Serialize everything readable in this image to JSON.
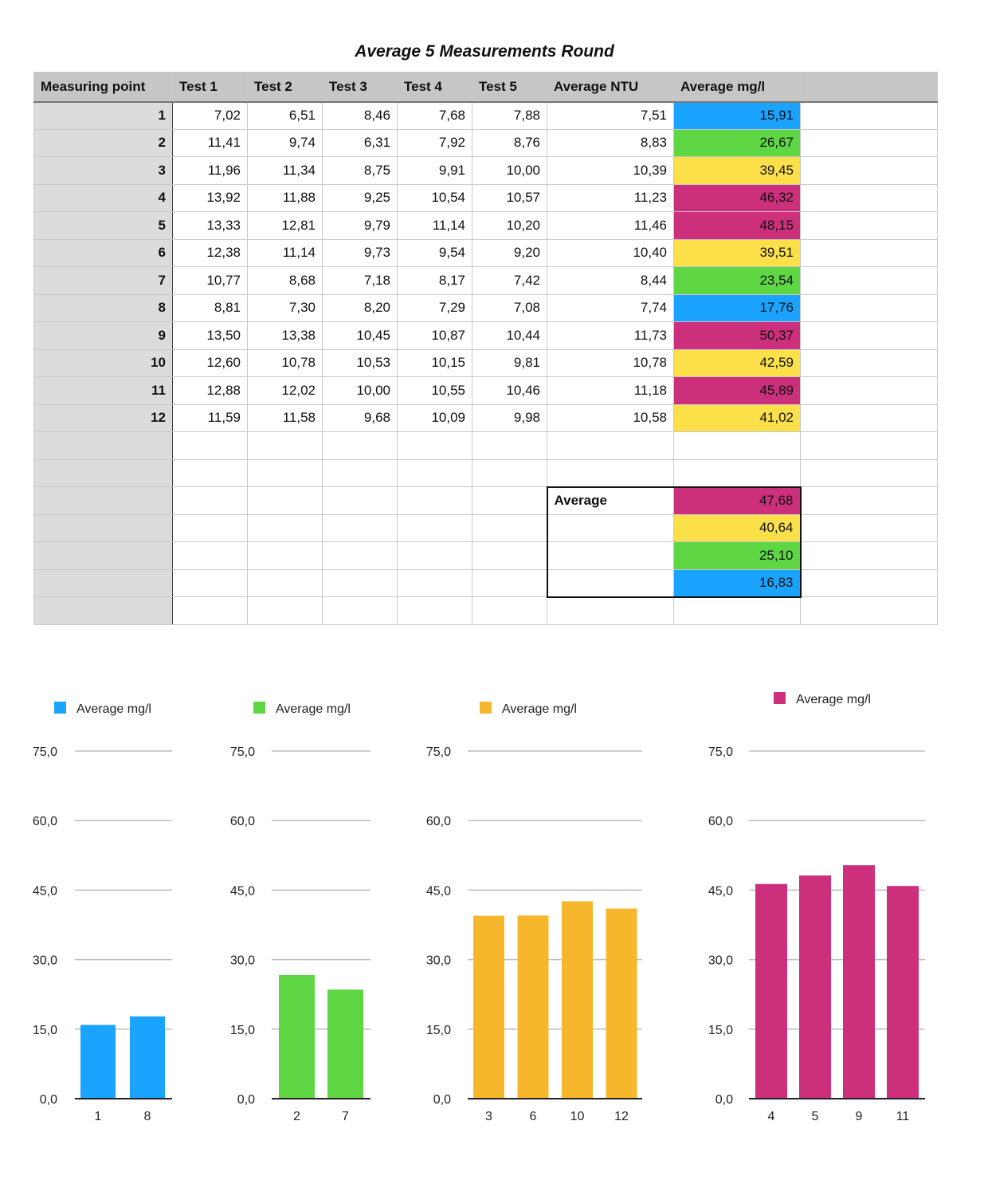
{
  "title": "Average 5 Measurements Round",
  "table": {
    "headers": [
      "Measuring point",
      "Test 1",
      "Test 2",
      "Test 3",
      "Test 4",
      "Test 5",
      "Average NTU",
      "Average mg/l",
      ""
    ],
    "rows": [
      {
        "point": "1",
        "values": [
          "7,02",
          "6,51",
          "8,46",
          "7,68",
          "7,88",
          "7,51"
        ],
        "mgl": "15,91",
        "color": "#1aa3ff"
      },
      {
        "point": "2",
        "values": [
          "11,41",
          "9,74",
          "6,31",
          "7,92",
          "8,76",
          "8,83"
        ],
        "mgl": "26,67",
        "color": "#5fd644"
      },
      {
        "point": "3",
        "values": [
          "11,96",
          "11,34",
          "8,75",
          "9,91",
          "10,00",
          "10,39"
        ],
        "mgl": "39,45",
        "color": "#fbe04a"
      },
      {
        "point": "4",
        "values": [
          "13,92",
          "11,88",
          "9,25",
          "10,54",
          "10,57",
          "11,23"
        ],
        "mgl": "46,32",
        "color": "#cc2f7c"
      },
      {
        "point": "5",
        "values": [
          "13,33",
          "12,81",
          "9,79",
          "11,14",
          "10,20",
          "11,46"
        ],
        "mgl": "48,15",
        "color": "#cc2f7c"
      },
      {
        "point": "6",
        "values": [
          "12,38",
          "11,14",
          "9,73",
          "9,54",
          "9,20",
          "10,40"
        ],
        "mgl": "39,51",
        "color": "#fbe04a"
      },
      {
        "point": "7",
        "values": [
          "10,77",
          "8,68",
          "7,18",
          "8,17",
          "7,42",
          "8,44"
        ],
        "mgl": "23,54",
        "color": "#5fd644"
      },
      {
        "point": "8",
        "values": [
          "8,81",
          "7,30",
          "8,20",
          "7,29",
          "7,08",
          "7,74"
        ],
        "mgl": "17,76",
        "color": "#1aa3ff"
      },
      {
        "point": "9",
        "values": [
          "13,50",
          "13,38",
          "10,45",
          "10,87",
          "10,44",
          "11,73"
        ],
        "mgl": "50,37",
        "color": "#cc2f7c"
      },
      {
        "point": "10",
        "values": [
          "12,60",
          "10,78",
          "10,53",
          "10,15",
          "9,81",
          "10,78"
        ],
        "mgl": "42,59",
        "color": "#fbe04a"
      },
      {
        "point": "11",
        "values": [
          "12,88",
          "12,02",
          "10,00",
          "10,55",
          "10,46",
          "11,18"
        ],
        "mgl": "45,89",
        "color": "#cc2f7c"
      },
      {
        "point": "12",
        "values": [
          "11,59",
          "11,58",
          "9,68",
          "10,09",
          "9,98",
          "10,58"
        ],
        "mgl": "41,02",
        "color": "#fbe04a"
      }
    ],
    "average_label": "Average",
    "averages": [
      {
        "value": "47,68",
        "color": "#cc2f7c"
      },
      {
        "value": "40,64",
        "color": "#fbe04a"
      },
      {
        "value": "25,10",
        "color": "#5fd644"
      },
      {
        "value": "16,83",
        "color": "#1aa3ff"
      }
    ]
  },
  "chart_data": [
    {
      "type": "bar",
      "categories": [
        "1",
        "8"
      ],
      "series": [
        {
          "name": "Average mg/l",
          "values": [
            15.91,
            17.76
          ]
        }
      ],
      "color": "#1aa3ff",
      "ylim": [
        0,
        75
      ],
      "yticks": [
        "0,0",
        "15,0",
        "30,0",
        "45,0",
        "60,0",
        "75,0"
      ],
      "grid": true,
      "legend": "top-left"
    },
    {
      "type": "bar",
      "categories": [
        "2",
        "7"
      ],
      "series": [
        {
          "name": "Average mg/l",
          "values": [
            26.67,
            23.54
          ]
        }
      ],
      "color": "#5fd644",
      "ylim": [
        0,
        75
      ],
      "yticks": [
        "0,0",
        "15,0",
        "30,0",
        "45,0",
        "60,0",
        "75,0"
      ],
      "grid": true,
      "legend": "top-left"
    },
    {
      "type": "bar",
      "categories": [
        "3",
        "6",
        "10",
        "12"
      ],
      "series": [
        {
          "name": "Average mg/l",
          "values": [
            39.45,
            39.51,
            42.59,
            41.02
          ]
        }
      ],
      "color": "#f6b72d",
      "ylim": [
        0,
        75
      ],
      "yticks": [
        "0,0",
        "15,0",
        "30,0",
        "45,0",
        "60,0",
        "75,0"
      ],
      "grid": true,
      "legend": "top-left"
    },
    {
      "type": "bar",
      "categories": [
        "4",
        "5",
        "9",
        "11"
      ],
      "series": [
        {
          "name": "Average mg/l",
          "values": [
            46.32,
            48.15,
            50.37,
            45.89
          ]
        }
      ],
      "color": "#cc2f7c",
      "ylim": [
        0,
        75
      ],
      "yticks": [
        "0,0",
        "15,0",
        "30,0",
        "45,0",
        "60,0",
        "75,0"
      ],
      "grid": true,
      "legend": "top-center"
    }
  ]
}
